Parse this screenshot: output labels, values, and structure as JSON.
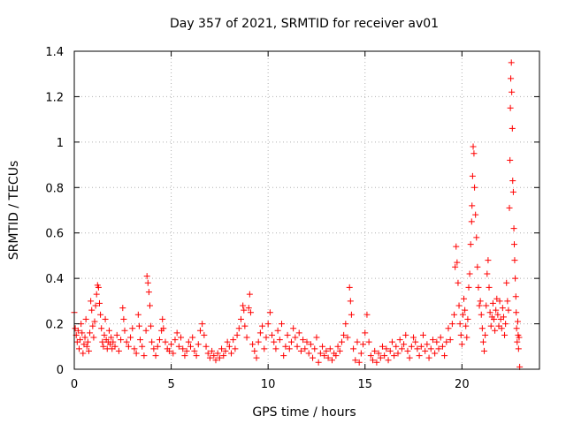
{
  "chart_data": {
    "type": "scatter",
    "title": "Day 357 of 2021, SRMTID for receiver av01",
    "xlabel": "GPS time / hours",
    "ylabel": "SRMTID / TECUs",
    "xlim": [
      0,
      24
    ],
    "ylim": [
      0,
      1.4
    ],
    "xticks": [
      0,
      5,
      10,
      15,
      20
    ],
    "xtick_labels": [
      "0",
      "5",
      "10",
      "15",
      "20"
    ],
    "yticks": [
      0,
      0.2,
      0.4,
      0.6,
      0.8,
      1.0,
      1.2,
      1.4
    ],
    "ytick_labels": [
      "0",
      "0.2",
      "0.4",
      "0.6",
      "0.8",
      "1",
      "1.2",
      "1.4"
    ],
    "grid": true,
    "marker": "+",
    "color": "#ff0000",
    "series": [
      {
        "name": "SRMTID",
        "points": [
          [
            0.0,
            0.25
          ],
          [
            0.05,
            0.18
          ],
          [
            0.1,
            0.15
          ],
          [
            0.15,
            0.12
          ],
          [
            0.2,
            0.17
          ],
          [
            0.25,
            0.09
          ],
          [
            0.3,
            0.13
          ],
          [
            0.35,
            0.2
          ],
          [
            0.4,
            0.16
          ],
          [
            0.45,
            0.07
          ],
          [
            0.5,
            0.11
          ],
          [
            0.55,
            0.14
          ],
          [
            0.6,
            0.22
          ],
          [
            0.65,
            0.1
          ],
          [
            0.7,
            0.12
          ],
          [
            0.75,
            0.08
          ],
          [
            0.8,
            0.16
          ],
          [
            0.85,
            0.3
          ],
          [
            0.9,
            0.26
          ],
          [
            0.95,
            0.19
          ],
          [
            1.0,
            0.14
          ],
          [
            1.05,
            0.21
          ],
          [
            1.1,
            0.28
          ],
          [
            1.15,
            0.33
          ],
          [
            1.2,
            0.37
          ],
          [
            1.25,
            0.36
          ],
          [
            1.3,
            0.29
          ],
          [
            1.35,
            0.24
          ],
          [
            1.4,
            0.18
          ],
          [
            1.45,
            0.12
          ],
          [
            1.5,
            0.1
          ],
          [
            1.55,
            0.15
          ],
          [
            1.6,
            0.22
          ],
          [
            1.65,
            0.13
          ],
          [
            1.7,
            0.09
          ],
          [
            1.75,
            0.12
          ],
          [
            1.8,
            0.17
          ],
          [
            1.85,
            0.11
          ],
          [
            1.9,
            0.14
          ],
          [
            1.95,
            0.09
          ],
          [
            2.0,
            0.12
          ],
          [
            2.1,
            0.1
          ],
          [
            2.2,
            0.15
          ],
          [
            2.3,
            0.08
          ],
          [
            2.4,
            0.13
          ],
          [
            2.5,
            0.27
          ],
          [
            2.55,
            0.22
          ],
          [
            2.6,
            0.17
          ],
          [
            2.7,
            0.12
          ],
          [
            2.8,
            0.1
          ],
          [
            2.9,
            0.14
          ],
          [
            3.0,
            0.18
          ],
          [
            3.1,
            0.09
          ],
          [
            3.2,
            0.07
          ],
          [
            3.3,
            0.24
          ],
          [
            3.35,
            0.19
          ],
          [
            3.4,
            0.13
          ],
          [
            3.5,
            0.1
          ],
          [
            3.6,
            0.06
          ],
          [
            3.7,
            0.17
          ],
          [
            3.75,
            0.41
          ],
          [
            3.8,
            0.38
          ],
          [
            3.85,
            0.34
          ],
          [
            3.9,
            0.28
          ],
          [
            3.95,
            0.19
          ],
          [
            4.0,
            0.12
          ],
          [
            4.1,
            0.09
          ],
          [
            4.2,
            0.06
          ],
          [
            4.3,
            0.1
          ],
          [
            4.4,
            0.13
          ],
          [
            4.5,
            0.17
          ],
          [
            4.55,
            0.22
          ],
          [
            4.6,
            0.18
          ],
          [
            4.7,
            0.12
          ],
          [
            4.8,
            0.09
          ],
          [
            4.9,
            0.08
          ],
          [
            5.0,
            0.11
          ],
          [
            5.1,
            0.07
          ],
          [
            5.2,
            0.13
          ],
          [
            5.3,
            0.16
          ],
          [
            5.4,
            0.1
          ],
          [
            5.5,
            0.14
          ],
          [
            5.6,
            0.09
          ],
          [
            5.7,
            0.06
          ],
          [
            5.8,
            0.08
          ],
          [
            5.9,
            0.12
          ],
          [
            6.0,
            0.1
          ],
          [
            6.1,
            0.14
          ],
          [
            6.2,
            0.08
          ],
          [
            6.3,
            0.06
          ],
          [
            6.4,
            0.11
          ],
          [
            6.5,
            0.17
          ],
          [
            6.6,
            0.2
          ],
          [
            6.7,
            0.15
          ],
          [
            6.8,
            0.1
          ],
          [
            6.9,
            0.07
          ],
          [
            7.0,
            0.05
          ],
          [
            7.1,
            0.08
          ],
          [
            7.2,
            0.06
          ],
          [
            7.3,
            0.04
          ],
          [
            7.4,
            0.07
          ],
          [
            7.5,
            0.05
          ],
          [
            7.6,
            0.09
          ],
          [
            7.7,
            0.06
          ],
          [
            7.8,
            0.08
          ],
          [
            7.9,
            0.12
          ],
          [
            8.0,
            0.1
          ],
          [
            8.1,
            0.07
          ],
          [
            8.2,
            0.13
          ],
          [
            8.3,
            0.09
          ],
          [
            8.4,
            0.15
          ],
          [
            8.5,
            0.18
          ],
          [
            8.6,
            0.22
          ],
          [
            8.7,
            0.28
          ],
          [
            8.75,
            0.26
          ],
          [
            8.8,
            0.19
          ],
          [
            8.9,
            0.14
          ],
          [
            9.0,
            0.27
          ],
          [
            9.05,
            0.33
          ],
          [
            9.1,
            0.25
          ],
          [
            9.2,
            0.11
          ],
          [
            9.3,
            0.08
          ],
          [
            9.4,
            0.05
          ],
          [
            9.5,
            0.12
          ],
          [
            9.6,
            0.16
          ],
          [
            9.7,
            0.19
          ],
          [
            9.8,
            0.09
          ],
          [
            9.9,
            0.14
          ],
          [
            10.0,
            0.2
          ],
          [
            10.1,
            0.25
          ],
          [
            10.2,
            0.15
          ],
          [
            10.3,
            0.12
          ],
          [
            10.4,
            0.09
          ],
          [
            10.5,
            0.17
          ],
          [
            10.6,
            0.13
          ],
          [
            10.7,
            0.2
          ],
          [
            10.8,
            0.06
          ],
          [
            10.9,
            0.1
          ],
          [
            11.0,
            0.15
          ],
          [
            11.1,
            0.09
          ],
          [
            11.2,
            0.12
          ],
          [
            11.3,
            0.18
          ],
          [
            11.4,
            0.14
          ],
          [
            11.5,
            0.1
          ],
          [
            11.6,
            0.16
          ],
          [
            11.7,
            0.08
          ],
          [
            11.8,
            0.13
          ],
          [
            11.9,
            0.09
          ],
          [
            12.0,
            0.12
          ],
          [
            12.1,
            0.07
          ],
          [
            12.2,
            0.11
          ],
          [
            12.3,
            0.05
          ],
          [
            12.4,
            0.09
          ],
          [
            12.5,
            0.14
          ],
          [
            12.6,
            0.03
          ],
          [
            12.7,
            0.07
          ],
          [
            12.8,
            0.1
          ],
          [
            12.9,
            0.06
          ],
          [
            13.0,
            0.08
          ],
          [
            13.1,
            0.05
          ],
          [
            13.2,
            0.09
          ],
          [
            13.3,
            0.04
          ],
          [
            13.4,
            0.07
          ],
          [
            13.5,
            0.06
          ],
          [
            13.6,
            0.1
          ],
          [
            13.7,
            0.08
          ],
          [
            13.8,
            0.12
          ],
          [
            13.9,
            0.15
          ],
          [
            14.0,
            0.2
          ],
          [
            14.1,
            0.14
          ],
          [
            14.2,
            0.36
          ],
          [
            14.25,
            0.3
          ],
          [
            14.3,
            0.24
          ],
          [
            14.4,
            0.09
          ],
          [
            14.5,
            0.04
          ],
          [
            14.6,
            0.12
          ],
          [
            14.7,
            0.03
          ],
          [
            14.8,
            0.07
          ],
          [
            14.9,
            0.11
          ],
          [
            15.0,
            0.16
          ],
          [
            15.1,
            0.24
          ],
          [
            15.2,
            0.12
          ],
          [
            15.3,
            0.06
          ],
          [
            15.4,
            0.04
          ],
          [
            15.5,
            0.08
          ],
          [
            15.6,
            0.03
          ],
          [
            15.7,
            0.07
          ],
          [
            15.8,
            0.05
          ],
          [
            15.9,
            0.1
          ],
          [
            16.0,
            0.06
          ],
          [
            16.1,
            0.09
          ],
          [
            16.2,
            0.04
          ],
          [
            16.3,
            0.08
          ],
          [
            16.4,
            0.12
          ],
          [
            16.5,
            0.06
          ],
          [
            16.6,
            0.1
          ],
          [
            16.7,
            0.07
          ],
          [
            16.8,
            0.13
          ],
          [
            16.9,
            0.09
          ],
          [
            17.0,
            0.11
          ],
          [
            17.1,
            0.15
          ],
          [
            17.2,
            0.08
          ],
          [
            17.3,
            0.05
          ],
          [
            17.4,
            0.1
          ],
          [
            17.5,
            0.14
          ],
          [
            17.6,
            0.12
          ],
          [
            17.7,
            0.09
          ],
          [
            17.8,
            0.06
          ],
          [
            17.9,
            0.1
          ],
          [
            18.0,
            0.15
          ],
          [
            18.1,
            0.08
          ],
          [
            18.2,
            0.11
          ],
          [
            18.3,
            0.05
          ],
          [
            18.4,
            0.09
          ],
          [
            18.5,
            0.13
          ],
          [
            18.6,
            0.07
          ],
          [
            18.7,
            0.12
          ],
          [
            18.8,
            0.09
          ],
          [
            18.9,
            0.14
          ],
          [
            19.0,
            0.1
          ],
          [
            19.1,
            0.06
          ],
          [
            19.2,
            0.12
          ],
          [
            19.3,
            0.18
          ],
          [
            19.4,
            0.13
          ],
          [
            19.5,
            0.2
          ],
          [
            19.6,
            0.24
          ],
          [
            19.65,
            0.45
          ],
          [
            19.7,
            0.54
          ],
          [
            19.75,
            0.47
          ],
          [
            19.8,
            0.38
          ],
          [
            19.85,
            0.28
          ],
          [
            19.9,
            0.2
          ],
          [
            19.95,
            0.15
          ],
          [
            20.0,
            0.11
          ],
          [
            20.05,
            0.24
          ],
          [
            20.1,
            0.31
          ],
          [
            20.15,
            0.26
          ],
          [
            20.2,
            0.19
          ],
          [
            20.25,
            0.14
          ],
          [
            20.3,
            0.22
          ],
          [
            20.35,
            0.36
          ],
          [
            20.4,
            0.42
          ],
          [
            20.45,
            0.55
          ],
          [
            20.5,
            0.65
          ],
          [
            20.52,
            0.72
          ],
          [
            20.55,
            0.85
          ],
          [
            20.58,
            0.98
          ],
          [
            20.62,
            0.95
          ],
          [
            20.65,
            0.8
          ],
          [
            20.7,
            0.68
          ],
          [
            20.75,
            0.58
          ],
          [
            20.8,
            0.45
          ],
          [
            20.85,
            0.36
          ],
          [
            20.9,
            0.28
          ],
          [
            20.95,
            0.3
          ],
          [
            21.0,
            0.24
          ],
          [
            21.05,
            0.18
          ],
          [
            21.1,
            0.12
          ],
          [
            21.15,
            0.08
          ],
          [
            21.2,
            0.15
          ],
          [
            21.25,
            0.28
          ],
          [
            21.3,
            0.42
          ],
          [
            21.35,
            0.48
          ],
          [
            21.4,
            0.36
          ],
          [
            21.45,
            0.25
          ],
          [
            21.5,
            0.19
          ],
          [
            21.55,
            0.23
          ],
          [
            21.6,
            0.29
          ],
          [
            21.65,
            0.22
          ],
          [
            21.7,
            0.17
          ],
          [
            21.75,
            0.26
          ],
          [
            21.8,
            0.31
          ],
          [
            21.85,
            0.24
          ],
          [
            21.9,
            0.19
          ],
          [
            21.95,
            0.3
          ],
          [
            22.0,
            0.22
          ],
          [
            22.05,
            0.18
          ],
          [
            22.1,
            0.27
          ],
          [
            22.15,
            0.23
          ],
          [
            22.2,
            0.15
          ],
          [
            22.25,
            0.2
          ],
          [
            22.3,
            0.38
          ],
          [
            22.35,
            0.3
          ],
          [
            22.4,
            0.26
          ],
          [
            22.45,
            0.71
          ],
          [
            22.48,
            0.92
          ],
          [
            22.5,
            1.15
          ],
          [
            22.52,
            1.28
          ],
          [
            22.55,
            1.35
          ],
          [
            22.57,
            1.22
          ],
          [
            22.6,
            1.06
          ],
          [
            22.62,
            0.83
          ],
          [
            22.65,
            0.78
          ],
          [
            22.68,
            0.62
          ],
          [
            22.7,
            0.55
          ],
          [
            22.72,
            0.48
          ],
          [
            22.75,
            0.4
          ],
          [
            22.78,
            0.32
          ],
          [
            22.8,
            0.25
          ],
          [
            22.82,
            0.18
          ],
          [
            22.85,
            0.12
          ],
          [
            22.88,
            0.21
          ],
          [
            22.9,
            0.15
          ],
          [
            22.92,
            0.09
          ],
          [
            22.95,
            0.14
          ],
          [
            22.98,
            0.01
          ]
        ]
      }
    ]
  }
}
